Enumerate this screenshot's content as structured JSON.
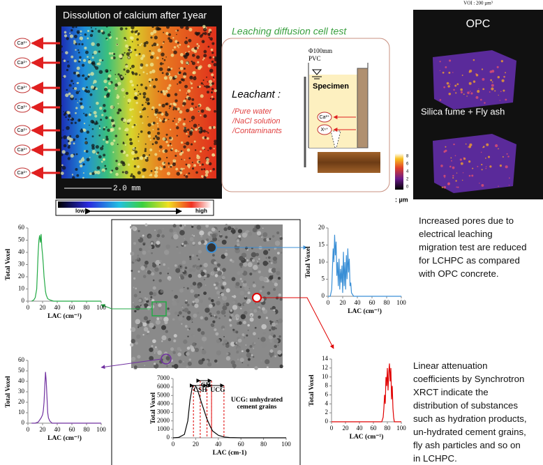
{
  "calcium_map": {
    "title": "Dissolution of calcium after 1year",
    "scale": "2.0 mm",
    "low": "low",
    "high": "high",
    "ions": [
      "Ca²⁺",
      "Ca²⁺",
      "Ca²⁺",
      "Ca²⁺",
      "Ca²⁺",
      "Ca²⁺",
      "Ca²⁺"
    ]
  },
  "cell_test": {
    "title": "Leaching diffusion cell test",
    "diameter": "Φ100mm",
    "material": "PVC",
    "specimen": "Specimen",
    "leachant": "Leachant :",
    "items": [
      "/Pure water",
      "/NaCl solution",
      "/Contaminants"
    ],
    "ions": [
      "Ca²⁺",
      "Xⁿ⁺"
    ]
  },
  "tomography": {
    "voi": "VOI : 200 µm³",
    "panels": [
      "OPC",
      "Silica fume + Fly ash"
    ],
    "colorbar_ticks": [
      8,
      6,
      4,
      2,
      0
    ],
    "unit": ": µm"
  },
  "notes": [
    [
      "Increased pores due to",
      "electrical leaching",
      "migration test are reduced",
      "for LCHPC as compared",
      "with OPC concrete."
    ],
    [
      "Linear attenuation",
      "coefficients by Synchrotron",
      "XRCT indicate the",
      "distribution of substances",
      "such as hydration products,",
      "un-hydrated cement grains,",
      "fly ash particles and so on",
      "in LCHPC."
    ]
  ],
  "chart_data": [
    {
      "type": "line",
      "color": "#22aa44",
      "x": [
        5,
        8,
        10,
        12,
        13,
        14,
        15,
        16,
        17,
        18,
        19,
        20,
        21,
        22,
        23,
        24,
        25,
        27,
        30,
        35,
        40,
        50,
        60,
        80,
        100
      ],
      "values": [
        0,
        1,
        3,
        10,
        25,
        40,
        50,
        54,
        48,
        55,
        44,
        38,
        30,
        20,
        14,
        8,
        5,
        2,
        1,
        0,
        0,
        0,
        0,
        0,
        0
      ],
      "xlim": [
        0,
        100
      ],
      "ylim": [
        0,
        60
      ],
      "xticks": [
        0,
        20,
        40,
        60,
        80,
        100
      ],
      "yticks": [
        0,
        10,
        20,
        30,
        40,
        50,
        60
      ],
      "xlabel": "LAC (cm⁻¹)",
      "ylabel": "Total Voxel"
    },
    {
      "type": "line",
      "color": "#7030a0",
      "x": [
        5,
        10,
        14,
        16,
        18,
        20,
        21,
        22,
        23,
        24,
        25,
        26,
        27,
        28,
        30,
        33,
        40,
        60,
        100
      ],
      "values": [
        0,
        0,
        1,
        3,
        5,
        8,
        12,
        20,
        35,
        49,
        40,
        25,
        10,
        5,
        2,
        0,
        0,
        0,
        0
      ],
      "xlim": [
        0,
        100
      ],
      "ylim": [
        0,
        60
      ],
      "xticks": [
        0,
        20,
        40,
        60,
        80,
        100
      ],
      "yticks": [
        0,
        10,
        20,
        30,
        40,
        50,
        60
      ],
      "xlabel": "LAC (cm⁻¹)",
      "ylabel": "Total Voxel"
    },
    {
      "type": "line",
      "color": "#3a8fd6",
      "x": [
        0,
        3,
        5,
        6,
        7,
        8,
        9,
        10,
        11,
        12,
        13,
        14,
        15,
        16,
        17,
        18,
        19,
        20,
        21,
        22,
        23,
        24,
        25,
        26,
        27,
        28,
        29,
        30,
        31,
        32,
        35,
        40,
        60,
        100
      ],
      "values": [
        0,
        0,
        2,
        8,
        14,
        10,
        18,
        12,
        16,
        6,
        10,
        3,
        11,
        2,
        8,
        4,
        9,
        1,
        13,
        3,
        10,
        2,
        12,
        5,
        14,
        7,
        11,
        3,
        4,
        1,
        0,
        0,
        0,
        0
      ],
      "xlim": [
        0,
        100
      ],
      "ylim": [
        0,
        20
      ],
      "xticks": [
        0,
        20,
        40,
        60,
        80,
        100
      ],
      "yticks": [
        0,
        5,
        10,
        15,
        20
      ],
      "xlabel": "LAC (cm⁻¹)",
      "ylabel": "Total Voxel"
    },
    {
      "type": "line",
      "color": "#e00000",
      "x": [
        0,
        40,
        60,
        70,
        72,
        74,
        75,
        76,
        77,
        78,
        79,
        80,
        81,
        82,
        83,
        84,
        85,
        86,
        87,
        88,
        89,
        90,
        92,
        95,
        100
      ],
      "values": [
        0,
        0,
        0,
        0,
        0,
        1,
        3,
        6,
        4,
        10,
        8,
        12,
        7,
        11,
        13,
        9,
        12,
        5,
        8,
        3,
        1,
        0,
        0,
        0,
        0
      ],
      "xlim": [
        0,
        100
      ],
      "ylim": [
        0,
        14
      ],
      "xticks": [
        0,
        20,
        40,
        60,
        80,
        100
      ],
      "yticks": [
        0,
        2,
        4,
        6,
        8,
        10,
        12,
        14
      ],
      "xlabel": "LAC (cm⁻¹)",
      "ylabel": "Total Voxel"
    },
    {
      "type": "line",
      "color": "#000000",
      "x": [
        0,
        5,
        10,
        13,
        15,
        17,
        18,
        20,
        22,
        25,
        28,
        30,
        33,
        35,
        40,
        45,
        50,
        60,
        100
      ],
      "values": [
        0,
        50,
        400,
        2000,
        4500,
        6000,
        6200,
        6100,
        5500,
        4200,
        3000,
        2200,
        1300,
        800,
        300,
        100,
        30,
        0,
        0
      ],
      "xlim": [
        0,
        100
      ],
      "ylim": [
        0,
        7000
      ],
      "xticks": [
        0,
        20,
        40,
        60,
        80,
        100
      ],
      "yticks": [
        0,
        1000,
        2000,
        3000,
        4000,
        5000,
        6000,
        7000
      ],
      "xlabel": "LAC (cm-1)",
      "ylabel": "Total Voxel",
      "annotation": "UCG: unhydrated cement grains",
      "regions": [
        {
          "label": "CSH",
          "from": 18,
          "to": 30
        },
        {
          "label": "CH",
          "from": 24,
          "to": 34
        },
        {
          "label": "UCG",
          "from": 34,
          "to": 45
        }
      ]
    }
  ]
}
